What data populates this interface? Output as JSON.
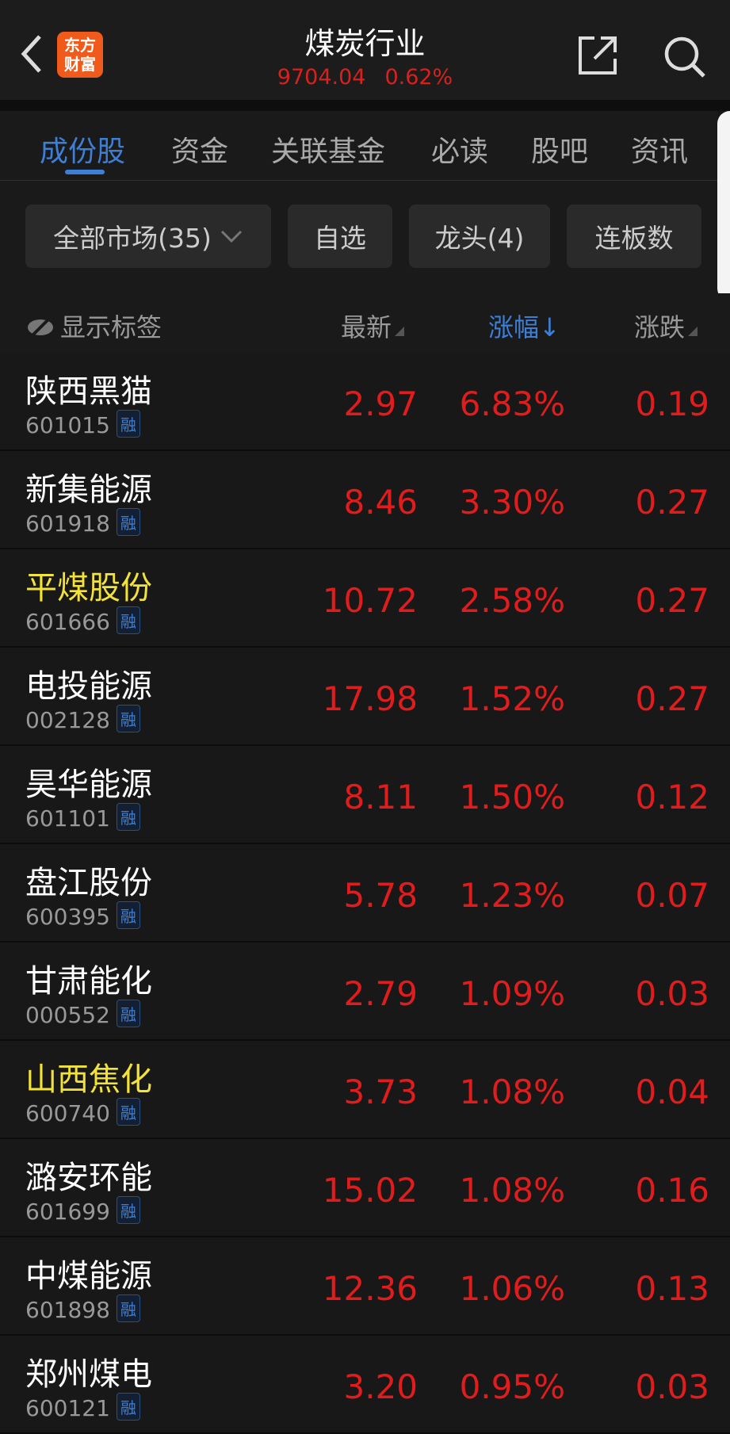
{
  "header": {
    "title": "煤炭行业",
    "index_value": "9704.04",
    "index_change": "0.62%",
    "logo_text": "东方财富"
  },
  "tabs": [
    {
      "label": "成份股",
      "active": true
    },
    {
      "label": "资金"
    },
    {
      "label": "关联基金"
    },
    {
      "label": "必读"
    },
    {
      "label": "股吧"
    },
    {
      "label": "资讯"
    }
  ],
  "filters": {
    "market": "全部市场(35)",
    "watchlist": "自选",
    "leaders": "龙头(4)",
    "limit_up": "连板数"
  },
  "columns": {
    "tags": "显示标签",
    "latest": "最新",
    "change_pct": "涨幅↓",
    "change": "涨跌"
  },
  "colors": {
    "up": "#e01c1c",
    "accent": "#3d7fd6",
    "highlight": "#f3e23a"
  },
  "badge": "融",
  "rows": [
    {
      "name": "陕西黑猫",
      "code": "601015",
      "price": "2.97",
      "pct": "6.83%",
      "chg": "0.19",
      "highlight": false
    },
    {
      "name": "新集能源",
      "code": "601918",
      "price": "8.46",
      "pct": "3.30%",
      "chg": "0.27",
      "highlight": false
    },
    {
      "name": "平煤股份",
      "code": "601666",
      "price": "10.72",
      "pct": "2.58%",
      "chg": "0.27",
      "highlight": true
    },
    {
      "name": "电投能源",
      "code": "002128",
      "price": "17.98",
      "pct": "1.52%",
      "chg": "0.27",
      "highlight": false
    },
    {
      "name": "昊华能源",
      "code": "601101",
      "price": "8.11",
      "pct": "1.50%",
      "chg": "0.12",
      "highlight": false
    },
    {
      "name": "盘江股份",
      "code": "600395",
      "price": "5.78",
      "pct": "1.23%",
      "chg": "0.07",
      "highlight": false
    },
    {
      "name": "甘肃能化",
      "code": "000552",
      "price": "2.79",
      "pct": "1.09%",
      "chg": "0.03",
      "highlight": false
    },
    {
      "name": "山西焦化",
      "code": "600740",
      "price": "3.73",
      "pct": "1.08%",
      "chg": "0.04",
      "highlight": true
    },
    {
      "name": "潞安环能",
      "code": "601699",
      "price": "15.02",
      "pct": "1.08%",
      "chg": "0.16",
      "highlight": false
    },
    {
      "name": "中煤能源",
      "code": "601898",
      "price": "12.36",
      "pct": "1.06%",
      "chg": "0.13",
      "highlight": false
    },
    {
      "name": "郑州煤电",
      "code": "600121",
      "price": "3.20",
      "pct": "0.95%",
      "chg": "0.03",
      "highlight": false
    }
  ]
}
